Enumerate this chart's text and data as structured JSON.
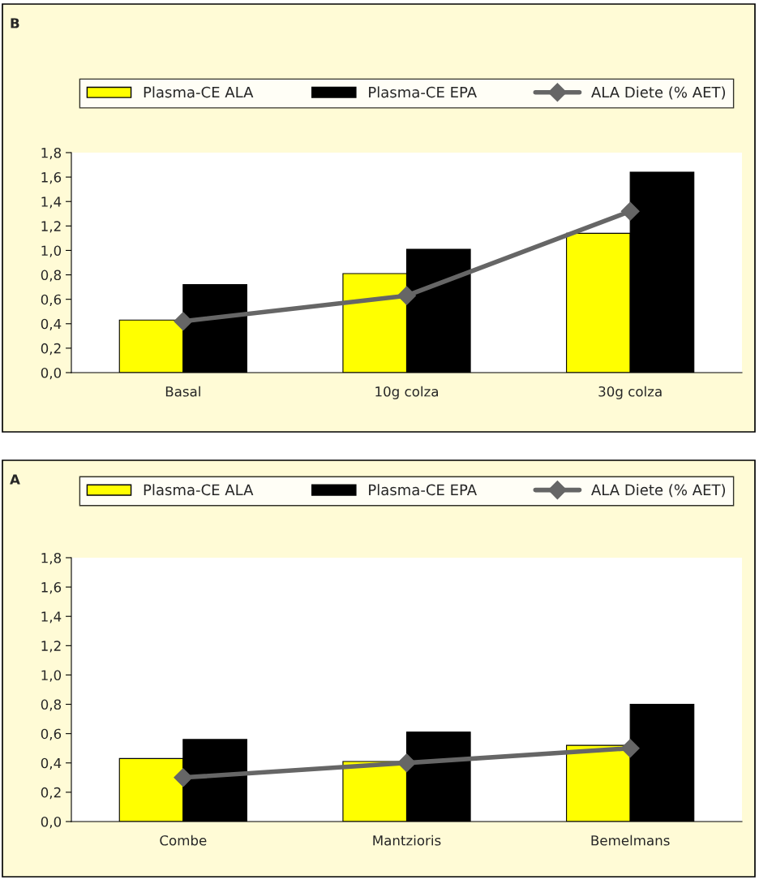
{
  "chart_data": [
    {
      "type": "bar",
      "annotations": [
        "B"
      ],
      "categories": [
        "Basal",
        "10g colza",
        "30g colza"
      ],
      "series": [
        {
          "name": "Plasma-CE ALA",
          "color": "#ffff00",
          "values": [
            0.43,
            0.81,
            1.14
          ]
        },
        {
          "name": "Plasma-CE EPA",
          "color": "#000000",
          "values": [
            0.72,
            1.01,
            1.64
          ]
        },
        {
          "name": "ALA Diete (% AET)",
          "color": "#666666",
          "type": "line",
          "marker": "diamond",
          "values": [
            0.42,
            0.63,
            1.32
          ]
        }
      ],
      "ylim": [
        0,
        1.8
      ],
      "yticks": [
        {
          "value": 0,
          "label": "0,0"
        },
        {
          "value": 0.2,
          "label": "0,2"
        },
        {
          "value": 0.4,
          "label": "0,4"
        },
        {
          "value": 0.6,
          "label": "0,6"
        },
        {
          "value": 0.8,
          "label": "0,8"
        },
        {
          "value": 1.0,
          "label": "1,0"
        },
        {
          "value": 1.2,
          "label": "1,2"
        },
        {
          "value": 1.4,
          "label": "1,4"
        },
        {
          "value": 1.6,
          "label": "1,6"
        },
        {
          "value": 1.8,
          "label": "1,8"
        }
      ],
      "grid": false,
      "legend": "top"
    },
    {
      "type": "bar",
      "annotations": [
        "A"
      ],
      "categories": [
        "Combe",
        "Mantzioris",
        "Bemelmans"
      ],
      "series": [
        {
          "name": "Plasma-CE ALA",
          "color": "#ffff00",
          "values": [
            0.43,
            0.41,
            0.52
          ]
        },
        {
          "name": "Plasma-CE EPA",
          "color": "#000000",
          "values": [
            0.56,
            0.61,
            0.8
          ]
        },
        {
          "name": "ALA Diete (% AET)",
          "color": "#666666",
          "type": "line",
          "marker": "diamond",
          "values": [
            0.3,
            0.4,
            0.5
          ]
        }
      ],
      "ylim": [
        0,
        1.8
      ],
      "yticks": [
        {
          "value": 0,
          "label": "0,0"
        },
        {
          "value": 0.2,
          "label": "0,2"
        },
        {
          "value": 0.4,
          "label": "0,4"
        },
        {
          "value": 0.6,
          "label": "0,6"
        },
        {
          "value": 0.8,
          "label": "0,8"
        },
        {
          "value": 1.0,
          "label": "1,0"
        },
        {
          "value": 1.2,
          "label": "1,2"
        },
        {
          "value": 1.4,
          "label": "1,4"
        },
        {
          "value": 1.6,
          "label": "1,6"
        },
        {
          "value": 1.8,
          "label": "1,8"
        }
      ],
      "grid": false,
      "legend": "top"
    }
  ]
}
